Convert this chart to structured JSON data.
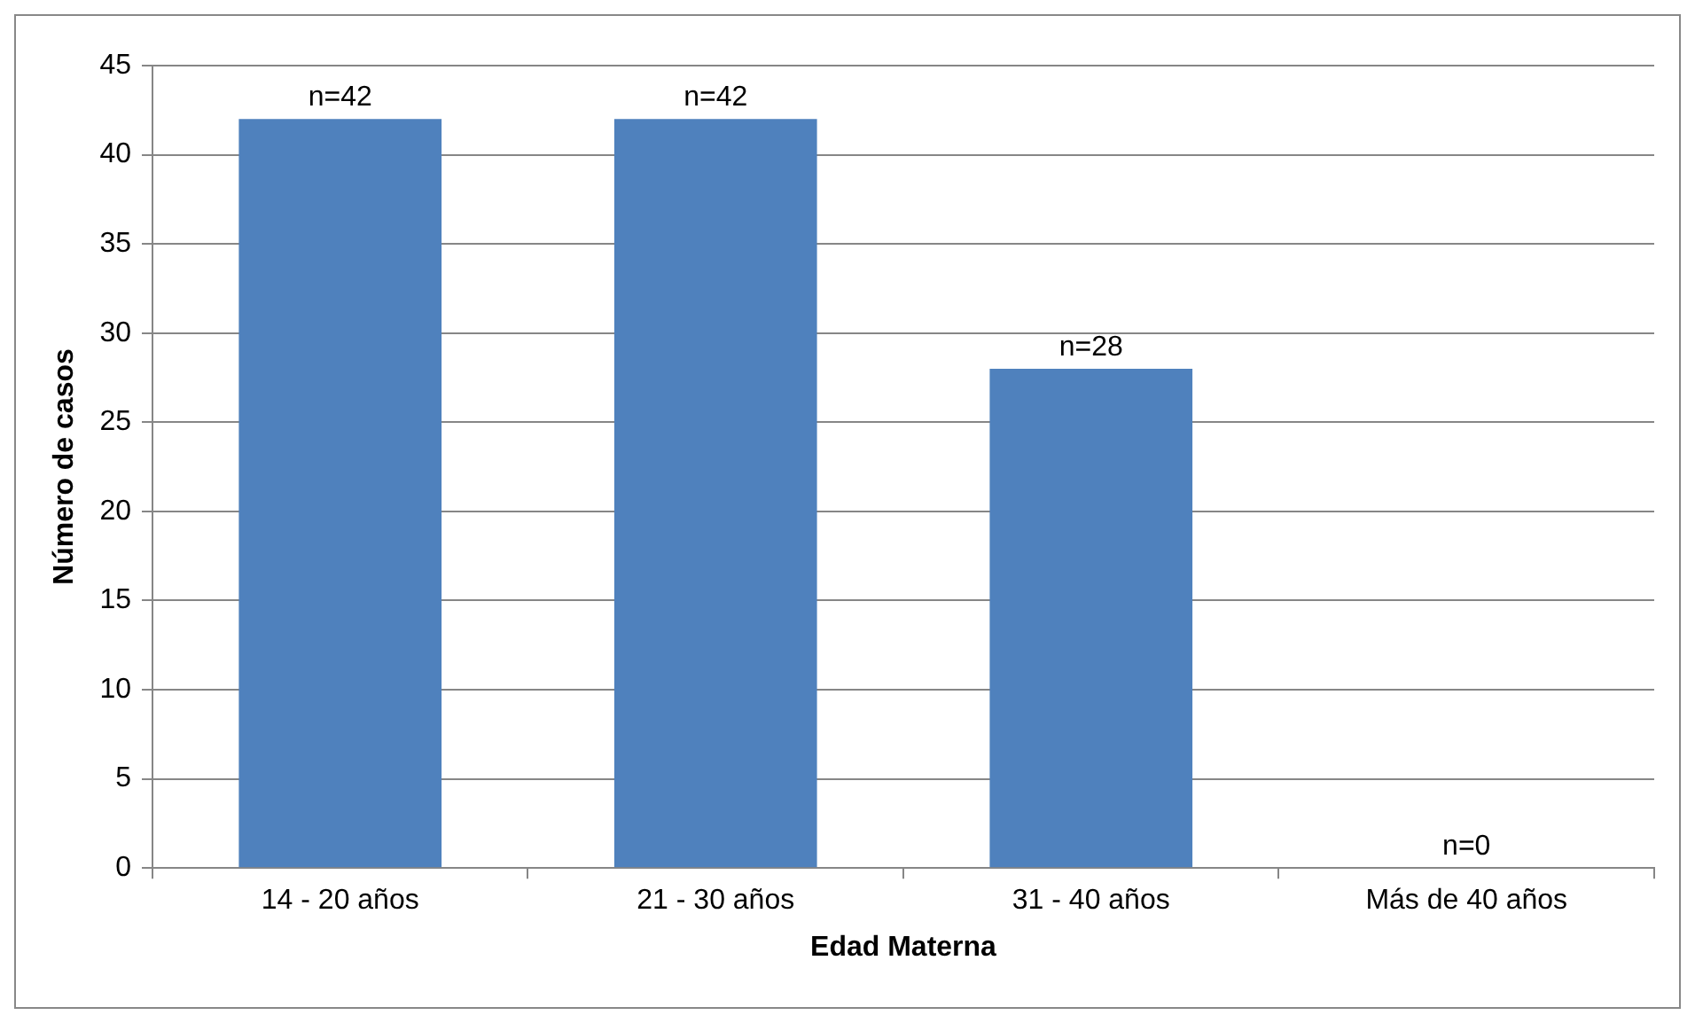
{
  "chart_data": {
    "type": "bar",
    "xlabel": "Edad Materna",
    "ylabel": "Número de casos",
    "categories": [
      "14 - 20 años",
      "21 - 30 años",
      "31 - 40 años",
      "Más de 40 años"
    ],
    "values": [
      42,
      42,
      28,
      0
    ],
    "color": "#4f81bd",
    "value_labels": [
      "n=42",
      "n=42",
      "n=28",
      "n=0"
    ],
    "ylim": [
      0,
      45
    ],
    "yticks": [
      0,
      5,
      10,
      15,
      20,
      25,
      30,
      35,
      40,
      45
    ],
    "grid": "y",
    "legend": false
  }
}
